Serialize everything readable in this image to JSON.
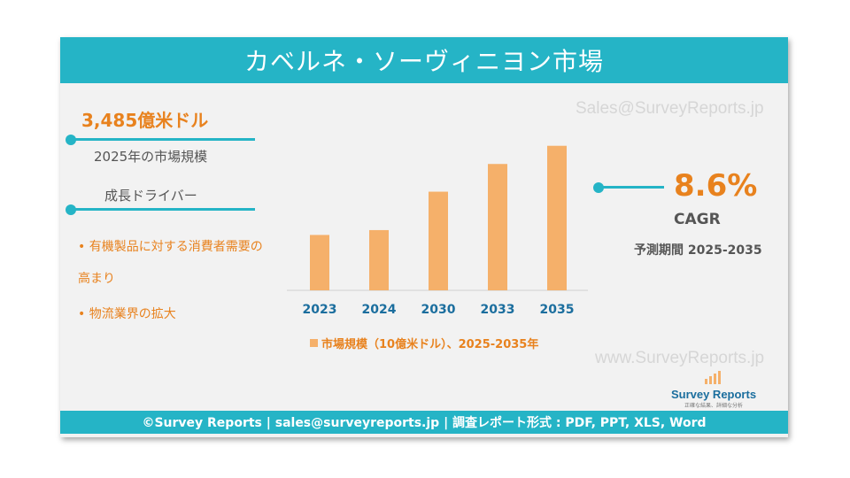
{
  "title": "カベルネ・ソーヴィニヨン市場",
  "watermarks": {
    "top": "Sales@SurveyReports.jp",
    "bottom": "www.SurveyReports.jp"
  },
  "market": {
    "value": "3,485億米ドル",
    "label": "2025年の市場規模"
  },
  "drivers": {
    "heading": "成長ドライバー",
    "items": [
      "• 有機製品に対する消費者需要の",
      "高まり",
      "• 物流業界の拡大"
    ]
  },
  "cagr": {
    "value": "8.6%",
    "label": "CAGR",
    "period": "予測期間 2025-2035"
  },
  "legend": "市場規模（10億米ドル）、2025-2035年",
  "logo": {
    "name": "Survey Reports",
    "tagline": "正確な結果、詳細な分析"
  },
  "footer": "©Survey Reports | sales@surveyreports.jp |  調査レポート形式 : PDF, PPT, XLS, Word",
  "colors": {
    "accent": "#25b4c6",
    "orange": "#e8821e",
    "bar": "#f5b06a"
  },
  "chart_data": {
    "type": "bar",
    "categories": [
      "2023",
      "2024",
      "2030",
      "2033",
      "2035"
    ],
    "values": [
      320,
      348,
      570,
      730,
      835
    ],
    "series": [
      {
        "name": "市場規模（10億米ドル）、2025-2035年",
        "values": [
          320,
          348,
          570,
          730,
          835
        ]
      }
    ],
    "ylim": [
      0,
      900
    ],
    "grid": false,
    "legend_position": "bottom"
  }
}
